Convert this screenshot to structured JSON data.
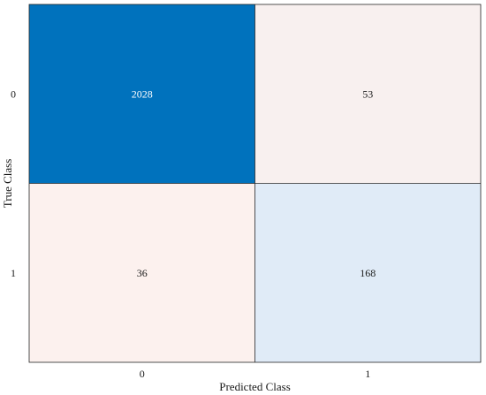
{
  "chart_data": {
    "type": "heatmap",
    "title": "",
    "xlabel": "Predicted Class",
    "ylabel": "True Class",
    "x_categories": [
      "0",
      "1"
    ],
    "y_categories": [
      "0",
      "1"
    ],
    "matrix": [
      [
        2028,
        53
      ],
      [
        36,
        168
      ]
    ],
    "colors": {
      "high": "#0072bd",
      "medium": "#deebf7",
      "low": "#fcf1ee",
      "text_on_dark": "#ffffff",
      "text_on_light": "#1a1a1a",
      "border": "#262626"
    }
  }
}
